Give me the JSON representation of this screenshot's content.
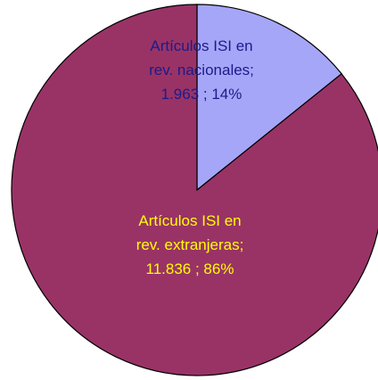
{
  "chart_data": {
    "type": "pie",
    "start_angle_deg": 0,
    "direction": "clockwise",
    "slices": [
      {
        "name": "Artículos ISI en rev. nacionales",
        "value": 1963,
        "value_label": "1.963",
        "percent_label": "14%",
        "label_lines": [
          "Artículos ISI en",
          "rev. nacionales;",
          "1.963 ; 14%"
        ],
        "color": "#A6A6F8",
        "label_color": "#1B1B8A"
      },
      {
        "name": "Artículos ISI en rev. extranjeras",
        "value": 11836,
        "value_label": "11.836",
        "percent_label": "86%",
        "label_lines": [
          "Artículos ISI en",
          "rev. extranjeras;",
          "11.836 ; 86%"
        ],
        "color": "#993366",
        "label_color": "#FFFF00"
      }
    ],
    "slice_border_color": "#000000"
  }
}
